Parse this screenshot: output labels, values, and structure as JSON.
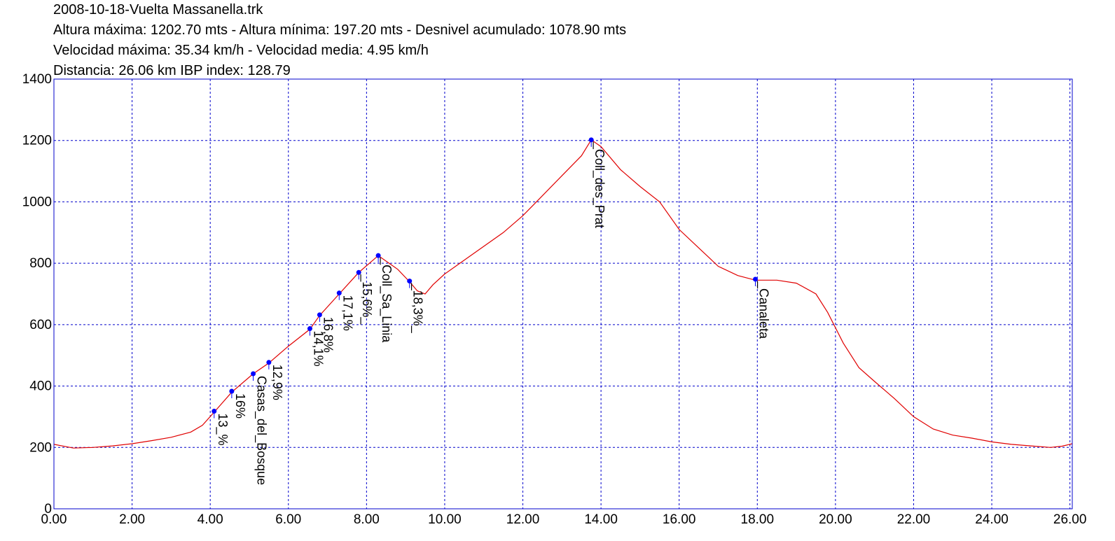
{
  "header": {
    "file": "2008-10-18-Vuelta Massanella.trk",
    "alturas": "Altura máxima: 1202.70 mts - Altura mínima: 197.20 mts - Desnivel acumulado: 1078.90 mts",
    "velocidades": "Velocidad máxima: 35.34 km/h - Velocidad media: 4.95 km/h",
    "distancia": "Distancia: 26.06 km IBP index: 128.79"
  },
  "colors": {
    "profile": "#e00000",
    "grid": "#0000cc",
    "waypoint": "#0000ff"
  },
  "chart_data": {
    "type": "line",
    "xlim": [
      0,
      26.06
    ],
    "ylim": [
      0,
      1400
    ],
    "x_ticks": [
      "0.00",
      "2.00",
      "4.00",
      "6.00",
      "8.00",
      "10.00",
      "12.00",
      "14.00",
      "16.00",
      "18.00",
      "20.00",
      "22.00",
      "24.00",
      "26.00"
    ],
    "y_ticks": [
      "0",
      "200",
      "400",
      "600",
      "800",
      "1000",
      "1200",
      "1400"
    ],
    "grid": true,
    "series": [
      {
        "points": [
          [
            0,
            210
          ],
          [
            0.5,
            198
          ],
          [
            1,
            200
          ],
          [
            1.5,
            205
          ],
          [
            2,
            212
          ],
          [
            2.5,
            222
          ],
          [
            3,
            233
          ],
          [
            3.5,
            250
          ],
          [
            3.8,
            272
          ],
          [
            4.1,
            315
          ],
          [
            4.55,
            380
          ],
          [
            5.1,
            440
          ],
          [
            5.5,
            475
          ],
          [
            6,
            530
          ],
          [
            6.55,
            585
          ],
          [
            6.8,
            630
          ],
          [
            7.3,
            700
          ],
          [
            7.8,
            770
          ],
          [
            8.3,
            825
          ],
          [
            8.8,
            780
          ],
          [
            9.1,
            740
          ],
          [
            9.3,
            710
          ],
          [
            9.5,
            700
          ],
          [
            9.7,
            730
          ],
          [
            10,
            765
          ],
          [
            10.5,
            810
          ],
          [
            11,
            855
          ],
          [
            11.5,
            900
          ],
          [
            12,
            955
          ],
          [
            12.5,
            1020
          ],
          [
            13,
            1085
          ],
          [
            13.5,
            1150
          ],
          [
            13.75,
            1202
          ],
          [
            14,
            1180
          ],
          [
            14.5,
            1105
          ],
          [
            15,
            1050
          ],
          [
            15.5,
            1000
          ],
          [
            16,
            910
          ],
          [
            16.5,
            850
          ],
          [
            17,
            790
          ],
          [
            17.5,
            760
          ],
          [
            17.95,
            745
          ],
          [
            18.5,
            745
          ],
          [
            19,
            735
          ],
          [
            19.5,
            700
          ],
          [
            19.8,
            640
          ],
          [
            20.2,
            540
          ],
          [
            20.6,
            460
          ],
          [
            21,
            415
          ],
          [
            21.5,
            360
          ],
          [
            22,
            300
          ],
          [
            22.5,
            260
          ],
          [
            23,
            240
          ],
          [
            23.5,
            230
          ],
          [
            24,
            218
          ],
          [
            24.5,
            210
          ],
          [
            25,
            205
          ],
          [
            25.5,
            200
          ],
          [
            25.8,
            204
          ],
          [
            26.06,
            212
          ]
        ]
      }
    ],
    "waypoints": [
      {
        "label": "13_%",
        "x": 4.1,
        "y": 318
      },
      {
        "label": "16%",
        "x": 4.55,
        "y": 383
      },
      {
        "label": "Casas_del_Bosque",
        "x": 5.1,
        "y": 440
      },
      {
        "label": "12,9%",
        "x": 5.5,
        "y": 477
      },
      {
        "label": "14,1%",
        "x": 6.55,
        "y": 587
      },
      {
        "label": "16,8%",
        "x": 6.8,
        "y": 632
      },
      {
        "label": "17,1%",
        "x": 7.3,
        "y": 703
      },
      {
        "label": "_15,6%_",
        "x": 7.8,
        "y": 770
      },
      {
        "label": "_Coll_Sa_Linia",
        "x": 8.3,
        "y": 825
      },
      {
        "label": "_18,3%_",
        "x": 9.1,
        "y": 742
      },
      {
        "label": "_Coll_des_Prat",
        "x": 13.75,
        "y": 1202
      },
      {
        "label": "_Canaleta",
        "x": 17.95,
        "y": 748
      }
    ]
  }
}
